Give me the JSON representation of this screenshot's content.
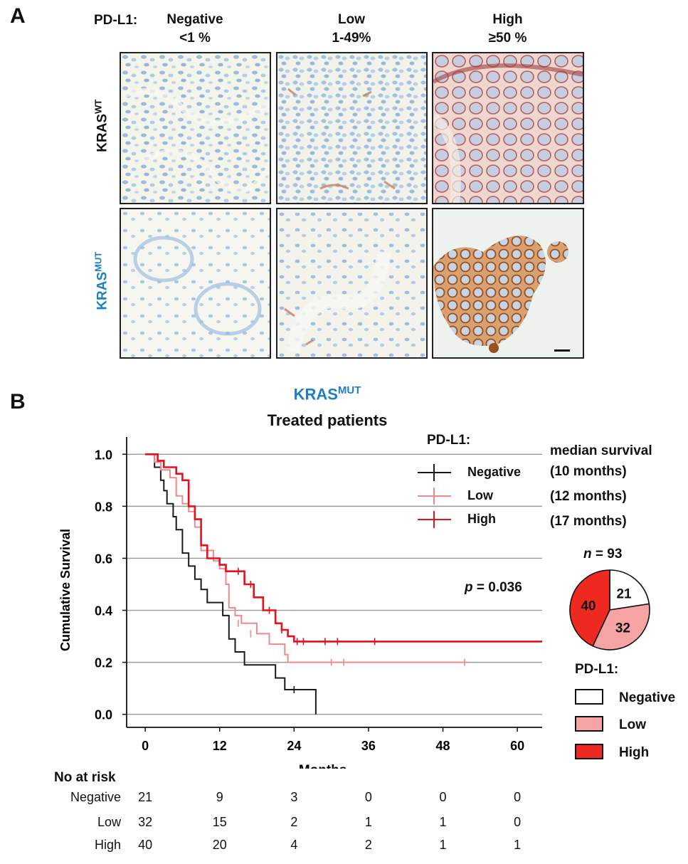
{
  "panel_a": {
    "letter": "A",
    "pdl1_label": "PD-L1:",
    "columns": [
      {
        "name": "Negative",
        "range": "<1 %"
      },
      {
        "name": "Low",
        "range": "1-49%"
      },
      {
        "name": "High",
        "range": "≥50 %"
      }
    ],
    "rows": [
      {
        "base": "KRAS",
        "sup": "WT",
        "color": "#111111"
      },
      {
        "base": "KRAS",
        "sup": "MUT",
        "color": "#1f7fc4"
      }
    ]
  },
  "panel_b": {
    "letter": "B",
    "title_base": "KRAS",
    "title_sup": "MUT",
    "subtitle": "Treated patients",
    "legend_title": "PD-L1:",
    "median_header": "median survival",
    "p_label": "p",
    "p_value": " = 0.036",
    "pie_n_label": "n",
    "pie_n_value": " = 93",
    "pie_legend_title": "PD-L1:",
    "risk_title": "No at risk"
  },
  "colors": {
    "negative": "#1a1a1a",
    "low": "#f08a8a",
    "high": "#e8101c",
    "title_blue": "#1f7fc4",
    "pie_low": "#f5a3a3",
    "pie_high": "#ee2a20"
  },
  "chart_data": {
    "type": "line",
    "subtype": "kaplan-meier",
    "title": "KRASMUT Treated patients",
    "xlabel": "Months",
    "ylabel": "Cumulative Survival",
    "xlim": [
      -3,
      64
    ],
    "ylim": [
      -0.05,
      1.05
    ],
    "xticks": [
      0,
      12,
      24,
      36,
      48,
      60
    ],
    "yticks": [
      0.0,
      0.2,
      0.4,
      0.6,
      0.8,
      1.0
    ],
    "ytick_labels": [
      "0.0",
      "0.2",
      "0.4",
      "0.6",
      "0.8",
      "1.0"
    ],
    "grid": true,
    "series": [
      {
        "name": "Negative",
        "median": "(10 months)",
        "color": "#1a1a1a",
        "steps": [
          [
            0,
            1.0
          ],
          [
            1.5,
            1.0
          ],
          [
            1.5,
            0.95
          ],
          [
            2.5,
            0.95
          ],
          [
            2.5,
            0.9
          ],
          [
            3.0,
            0.9
          ],
          [
            3.0,
            0.86
          ],
          [
            3.5,
            0.86
          ],
          [
            3.5,
            0.81
          ],
          [
            4.5,
            0.81
          ],
          [
            4.5,
            0.76
          ],
          [
            5.0,
            0.76
          ],
          [
            5.0,
            0.71
          ],
          [
            6.0,
            0.71
          ],
          [
            6.0,
            0.62
          ],
          [
            7.0,
            0.62
          ],
          [
            7.0,
            0.57
          ],
          [
            8.0,
            0.57
          ],
          [
            8.0,
            0.52
          ],
          [
            9.0,
            0.52
          ],
          [
            9.0,
            0.48
          ],
          [
            10.0,
            0.48
          ],
          [
            10.0,
            0.43
          ],
          [
            12.5,
            0.43
          ],
          [
            12.5,
            0.38
          ],
          [
            13.5,
            0.38
          ],
          [
            13.5,
            0.29
          ],
          [
            14.5,
            0.29
          ],
          [
            14.5,
            0.24
          ],
          [
            16.0,
            0.24
          ],
          [
            16.0,
            0.19
          ],
          [
            21.0,
            0.19
          ],
          [
            21.0,
            0.14
          ],
          [
            22.5,
            0.14
          ],
          [
            22.5,
            0.095
          ],
          [
            27.5,
            0.095
          ],
          [
            27.5,
            0.0
          ]
        ],
        "censored": [
          [
            24,
            0.095
          ]
        ]
      },
      {
        "name": "Low",
        "median": "(12 months)",
        "color": "#f08a8a",
        "steps": [
          [
            0,
            1.0
          ],
          [
            1.5,
            1.0
          ],
          [
            1.5,
            0.97
          ],
          [
            2.5,
            0.97
          ],
          [
            2.5,
            0.94
          ],
          [
            4.0,
            0.94
          ],
          [
            4.0,
            0.91
          ],
          [
            5.0,
            0.91
          ],
          [
            5.0,
            0.84
          ],
          [
            6.0,
            0.84
          ],
          [
            6.0,
            0.81
          ],
          [
            7.0,
            0.81
          ],
          [
            7.0,
            0.78
          ],
          [
            8.0,
            0.78
          ],
          [
            8.0,
            0.72
          ],
          [
            9.0,
            0.72
          ],
          [
            9.0,
            0.63
          ],
          [
            11.0,
            0.63
          ],
          [
            11.0,
            0.59
          ],
          [
            12.0,
            0.59
          ],
          [
            12.0,
            0.56
          ],
          [
            13.0,
            0.56
          ],
          [
            13.0,
            0.5
          ],
          [
            13.5,
            0.5
          ],
          [
            13.5,
            0.41
          ],
          [
            14.5,
            0.41
          ],
          [
            14.5,
            0.38
          ],
          [
            15.5,
            0.38
          ],
          [
            15.5,
            0.35
          ],
          [
            18.0,
            0.35
          ],
          [
            18.0,
            0.31
          ],
          [
            20.0,
            0.31
          ],
          [
            20.0,
            0.27
          ],
          [
            22.5,
            0.27
          ],
          [
            22.5,
            0.23
          ],
          [
            23.0,
            0.23
          ],
          [
            23.0,
            0.2
          ],
          [
            52.0,
            0.2
          ]
        ],
        "censored": [
          [
            15,
            0.35
          ],
          [
            17,
            0.31
          ],
          [
            30,
            0.2
          ],
          [
            32,
            0.2
          ],
          [
            51.5,
            0.2
          ]
        ]
      },
      {
        "name": "High",
        "median": "(17 months)",
        "color": "#e8101c",
        "steps": [
          [
            0,
            1.0
          ],
          [
            2.0,
            1.0
          ],
          [
            2.0,
            0.975
          ],
          [
            3.0,
            0.975
          ],
          [
            3.0,
            0.95
          ],
          [
            5.0,
            0.95
          ],
          [
            5.0,
            0.925
          ],
          [
            6.0,
            0.925
          ],
          [
            6.0,
            0.9
          ],
          [
            7.0,
            0.9
          ],
          [
            7.0,
            0.8
          ],
          [
            8.0,
            0.8
          ],
          [
            8.0,
            0.75
          ],
          [
            9.0,
            0.75
          ],
          [
            9.0,
            0.65
          ],
          [
            10.0,
            0.65
          ],
          [
            10.0,
            0.6
          ],
          [
            12.0,
            0.6
          ],
          [
            12.0,
            0.575
          ],
          [
            13.0,
            0.575
          ],
          [
            13.0,
            0.55
          ],
          [
            16.0,
            0.55
          ],
          [
            16.0,
            0.5
          ],
          [
            17.5,
            0.5
          ],
          [
            17.5,
            0.45
          ],
          [
            19.0,
            0.45
          ],
          [
            19.0,
            0.4
          ],
          [
            21.0,
            0.4
          ],
          [
            21.0,
            0.35
          ],
          [
            22.0,
            0.35
          ],
          [
            22.0,
            0.325
          ],
          [
            23.0,
            0.325
          ],
          [
            23.0,
            0.3
          ],
          [
            24.0,
            0.3
          ],
          [
            24.0,
            0.28
          ],
          [
            64.0,
            0.28
          ]
        ],
        "censored": [
          [
            15,
            0.55
          ],
          [
            17,
            0.5
          ],
          [
            20,
            0.4
          ],
          [
            22,
            0.325
          ],
          [
            24.5,
            0.28
          ],
          [
            25.5,
            0.28
          ],
          [
            29,
            0.28
          ],
          [
            31,
            0.28
          ],
          [
            37,
            0.28
          ]
        ]
      }
    ],
    "risk_table": {
      "times": [
        0,
        12,
        24,
        36,
        48,
        60
      ],
      "rows": [
        {
          "label": "Negative",
          "values": [
            21,
            9,
            3,
            0,
            0,
            0
          ]
        },
        {
          "label": "Low",
          "values": [
            32,
            15,
            2,
            1,
            1,
            0
          ]
        },
        {
          "label": "High",
          "values": [
            40,
            20,
            4,
            2,
            1,
            1
          ]
        }
      ]
    },
    "pie": {
      "total": 93,
      "slices": [
        {
          "label": "Negative",
          "value": 21
        },
        {
          "label": "Low",
          "value": 32
        },
        {
          "label": "High",
          "value": 40
        }
      ]
    }
  }
}
